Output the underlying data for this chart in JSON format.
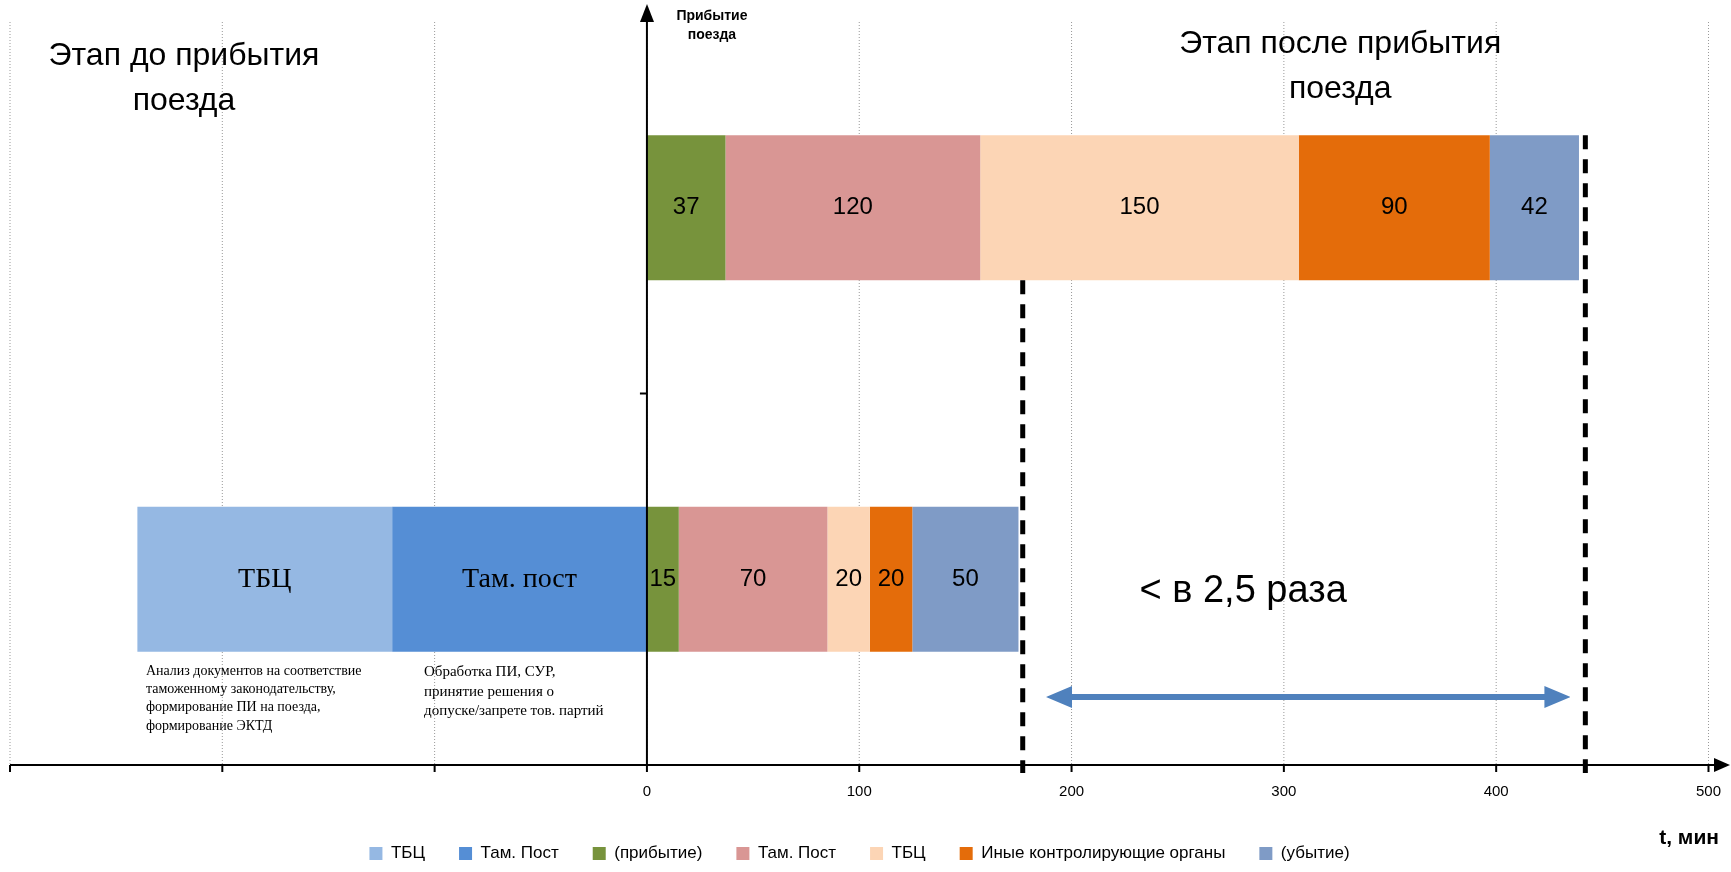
{
  "chart_data": {
    "type": "bar",
    "orientation": "horizontal",
    "xlabel": "t, мин",
    "ylabel": "Прибытие поезда",
    "categories": [
      null,
      null
    ],
    "xlim": [
      -300,
      500
    ],
    "xticks": [
      {
        "value": -300,
        "label": null
      },
      {
        "value": -200,
        "label": null
      },
      {
        "value": -100,
        "label": null
      },
      0,
      100,
      200,
      300,
      400,
      500
    ],
    "grid": "x",
    "legend": "bottom",
    "series": [
      {
        "name": "ТБЦ",
        "color": "#95b8e3",
        "values": [
          null,
          120
        ],
        "base": [
          null,
          -240
        ],
        "value_labels": [
          null,
          "ТБЦ"
        ]
      },
      {
        "name": "Там. Пост",
        "color": "#558ed5",
        "values": [
          null,
          120
        ],
        "base": [
          null,
          -120
        ],
        "value_labels": [
          null,
          "Там. пост"
        ]
      },
      {
        "name": "(прибытие)",
        "color": "#77933c",
        "values": [
          37,
          15
        ],
        "base": [
          0,
          0
        ],
        "value_labels": [
          "37",
          "15"
        ]
      },
      {
        "name": "Там. Пост",
        "color": "#d99694",
        "values": [
          120,
          70
        ],
        "base": [
          37,
          15
        ],
        "value_labels": [
          "120",
          "70"
        ]
      },
      {
        "name": "ТБЦ",
        "color": "#fcd5b5",
        "values": [
          150,
          20
        ],
        "base": [
          157,
          85
        ],
        "value_labels": [
          "150",
          "20"
        ]
      },
      {
        "name": "Иные контролирующие органы",
        "color": "#e46c0a",
        "values": [
          90,
          20
        ],
        "base": [
          307,
          105
        ],
        "value_labels": [
          "90",
          "20"
        ]
      },
      {
        "name": "(убытие)",
        "color": "#7f9bc6",
        "values": [
          42,
          50
        ],
        "base": [
          397,
          125
        ],
        "value_labels": [
          "42",
          "50"
        ]
      }
    ],
    "ref_lines": [
      {
        "axis": "x",
        "value": 177,
        "color": "#000000",
        "line_style": "dashed"
      },
      {
        "axis": "x",
        "value": 442,
        "color": "#000000",
        "line_style": "dashed"
      }
    ],
    "annotations": [
      "Этап до прибытия поезда",
      "Этап после прибытия поезда",
      "< в 2,5 раза",
      "Анализ документов на соответствие таможенному законодательству, формирование ПИ на поезда, формирование ЭКТД",
      "Обработка ПИ, СУР, принятие решения о допуске/запрете тов. партий"
    ]
  }
}
